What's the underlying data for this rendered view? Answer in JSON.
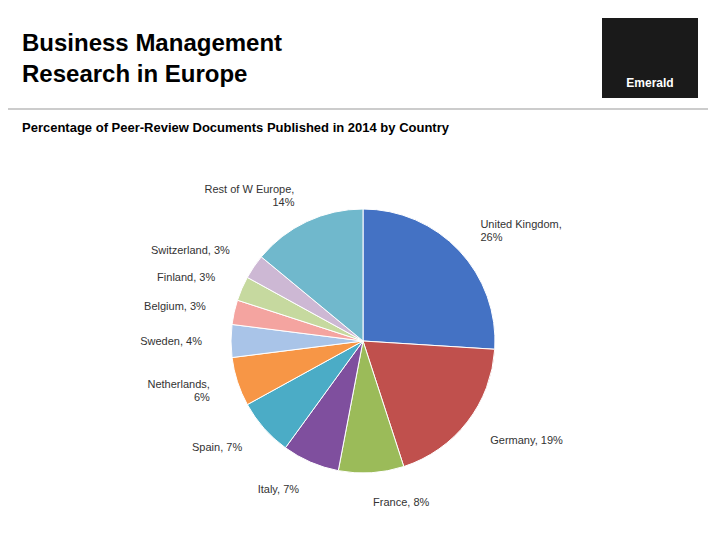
{
  "chart_data": {
    "type": "pie",
    "title": "Business Management\nResearch in Europe",
    "subtitle": "Percentage of Peer-Review Documents Published in 2014 by Country",
    "categories": [
      "United Kingdom,\n26%",
      "Germany, 19%",
      "France, 8%",
      "Italy, 7%",
      "Spain, 7%",
      "Netherlands,\n6%",
      "Sweden, 4%",
      "Belgium, 3%",
      "Finland, 3%",
      "Switzerland, 3%",
      "Rest of W Europe,\n14%"
    ],
    "values": [
      26,
      19,
      8,
      7,
      7,
      6,
      4,
      3,
      3,
      3,
      14
    ],
    "colors": [
      "#4472C4",
      "#C0504D",
      "#9BBB59",
      "#7F4F9E",
      "#4BACC6",
      "#F79646",
      "#A9C4E8",
      "#F4A4A0",
      "#C6D99F",
      "#CDB8D4",
      "#70B8CC"
    ],
    "annotations": [
      "Emerald"
    ]
  }
}
